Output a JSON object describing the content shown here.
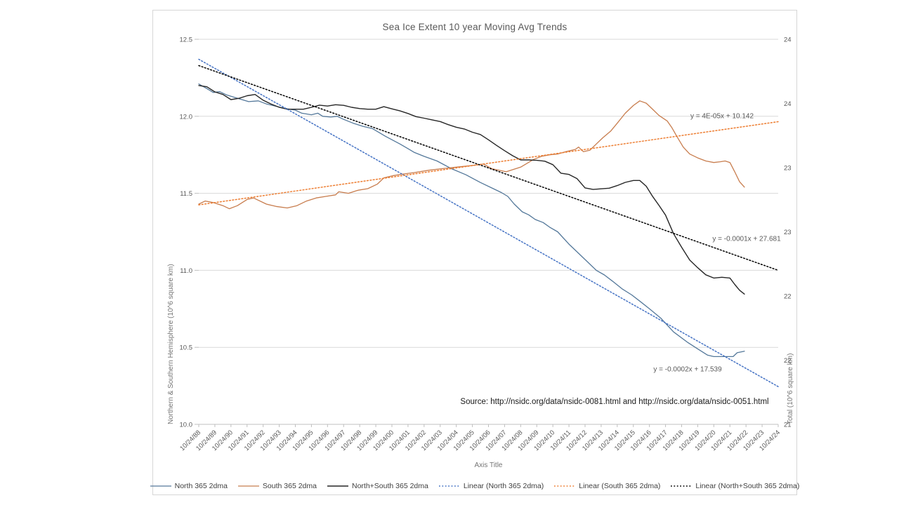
{
  "chart_data": {
    "type": "line",
    "title": "Sea Ice Extent 10 year Moving Avg Trends",
    "xlabel": "Axis Title",
    "ylabel_left": "Northern & Southern Hemisphere (10^6 square km)",
    "ylabel_right": "Total (10^6 square km)",
    "source_note": "Source:  http://nsidc.org/data/nsidc-0081.html and http://nsidc.org/data/nsidc-0051.html",
    "x_range": [
      0,
      36
    ],
    "y_left_range": [
      10.0,
      12.5
    ],
    "y_right_range": [
      21,
      24
    ],
    "grid": true,
    "legend_position": "bottom",
    "x_tick_labels": [
      "10/24/88",
      "10/24/89",
      "10/24/90",
      "10/24/91",
      "10/24/92",
      "10/24/93",
      "10/24/94",
      "10/24/95",
      "10/24/96",
      "10/24/97",
      "10/24/98",
      "10/24/99",
      "10/24/00",
      "10/24/01",
      "10/24/02",
      "10/24/03",
      "10/24/04",
      "10/24/05",
      "10/24/06",
      "10/24/07",
      "10/24/08",
      "10/24/09",
      "10/24/10",
      "10/24/11",
      "10/24/12",
      "10/24/13",
      "10/24/14",
      "10/24/15",
      "10/24/16",
      "10/24/17",
      "10/24/18",
      "10/24/19",
      "10/24/20",
      "10/24/21",
      "10/24/22",
      "10/24/23",
      "10/24/24"
    ],
    "y_left_ticks": [
      {
        "value": 12.5,
        "label": "12.5"
      },
      {
        "value": 12.0,
        "label": "12.0"
      },
      {
        "value": 11.5,
        "label": "11.5"
      },
      {
        "value": 11.0,
        "label": "11.0"
      },
      {
        "value": 10.5,
        "label": "10.5"
      },
      {
        "value": 10.0,
        "label": "10.0"
      }
    ],
    "y_right_ticks": [
      {
        "value": 24.0,
        "label": "24"
      },
      {
        "value": 23.5,
        "label": "24"
      },
      {
        "value": 23.0,
        "label": "23"
      },
      {
        "value": 22.5,
        "label": "23"
      },
      {
        "value": 22.0,
        "label": "22"
      },
      {
        "value": 21.5,
        "label": "22"
      },
      {
        "value": 21.0,
        "label": "21"
      }
    ],
    "series": [
      {
        "name": "North 365 2dma",
        "axis": "left",
        "style": "solid",
        "color": "#54789a",
        "width": 1.3,
        "points": [
          [
            0,
            12.21
          ],
          [
            0.5,
            12.18
          ],
          [
            0.9,
            12.155
          ],
          [
            1.3,
            12.16
          ],
          [
            1.7,
            12.14
          ],
          [
            2.3,
            12.12
          ],
          [
            3.1,
            12.095
          ],
          [
            3.7,
            12.1
          ],
          [
            4.2,
            12.08
          ],
          [
            4.8,
            12.065
          ],
          [
            5.4,
            12.05
          ],
          [
            6,
            12.04
          ],
          [
            6.4,
            12.02
          ],
          [
            7,
            12.01
          ],
          [
            7.4,
            12.02
          ],
          [
            7.7,
            12.0
          ],
          [
            8.2,
            11.995
          ],
          [
            8.6,
            12.0
          ],
          [
            9,
            11.98
          ],
          [
            9.6,
            11.955
          ],
          [
            10.2,
            11.935
          ],
          [
            10.8,
            11.92
          ],
          [
            11.6,
            11.87
          ],
          [
            12.5,
            11.82
          ],
          [
            13,
            11.79
          ],
          [
            13.4,
            11.765
          ],
          [
            14,
            11.74
          ],
          [
            14.8,
            11.71
          ],
          [
            15.7,
            11.66
          ],
          [
            16.6,
            11.62
          ],
          [
            17.5,
            11.57
          ],
          [
            18.3,
            11.53
          ],
          [
            18.8,
            11.505
          ],
          [
            19.2,
            11.48
          ],
          [
            19.6,
            11.43
          ],
          [
            20.1,
            11.38
          ],
          [
            20.5,
            11.36
          ],
          [
            20.9,
            11.33
          ],
          [
            21.4,
            11.31
          ],
          [
            21.8,
            11.28
          ],
          [
            22.3,
            11.25
          ],
          [
            23,
            11.17
          ],
          [
            23.5,
            11.12
          ],
          [
            24,
            11.07
          ],
          [
            24.7,
            11.0
          ],
          [
            25.2,
            10.97
          ],
          [
            25.7,
            10.93
          ],
          [
            26.3,
            10.88
          ],
          [
            26.9,
            10.84
          ],
          [
            27.4,
            10.8
          ],
          [
            28,
            10.75
          ],
          [
            28.7,
            10.69
          ],
          [
            29.5,
            10.6
          ],
          [
            30.4,
            10.53
          ],
          [
            31,
            10.49
          ],
          [
            31.6,
            10.45
          ],
          [
            32,
            10.44
          ],
          [
            32.6,
            10.44
          ],
          [
            33.2,
            10.44
          ],
          [
            33.45,
            10.465
          ],
          [
            33.9,
            10.475
          ]
        ]
      },
      {
        "name": "South 365 2dma",
        "axis": "left",
        "style": "solid",
        "color": "#c87d4e",
        "width": 1.3,
        "points": [
          [
            0,
            11.43
          ],
          [
            0.4,
            11.45
          ],
          [
            0.9,
            11.44
          ],
          [
            1.5,
            11.42
          ],
          [
            1.9,
            11.4
          ],
          [
            2.4,
            11.42
          ],
          [
            3,
            11.46
          ],
          [
            3.4,
            11.47
          ],
          [
            4.2,
            11.43
          ],
          [
            4.8,
            11.415
          ],
          [
            5.5,
            11.405
          ],
          [
            6.1,
            11.42
          ],
          [
            6.7,
            11.45
          ],
          [
            7.3,
            11.47
          ],
          [
            7.9,
            11.48
          ],
          [
            8.5,
            11.49
          ],
          [
            8.7,
            11.51
          ],
          [
            9.3,
            11.5
          ],
          [
            9.9,
            11.52
          ],
          [
            10.5,
            11.53
          ],
          [
            11.1,
            11.56
          ],
          [
            11.5,
            11.6
          ],
          [
            12.1,
            11.615
          ],
          [
            12.7,
            11.625
          ],
          [
            13.4,
            11.635
          ],
          [
            14.3,
            11.65
          ],
          [
            15.1,
            11.66
          ],
          [
            16,
            11.67
          ],
          [
            16.9,
            11.68
          ],
          [
            17.7,
            11.69
          ],
          [
            18.2,
            11.66
          ],
          [
            19.1,
            11.64
          ],
          [
            20,
            11.67
          ],
          [
            20.8,
            11.72
          ],
          [
            21.3,
            11.74
          ],
          [
            21.8,
            11.75
          ],
          [
            22.3,
            11.755
          ],
          [
            22.8,
            11.77
          ],
          [
            23.4,
            11.785
          ],
          [
            23.6,
            11.8
          ],
          [
            23.9,
            11.77
          ],
          [
            24.3,
            11.78
          ],
          [
            24.7,
            11.82
          ],
          [
            25.1,
            11.86
          ],
          [
            25.6,
            11.905
          ],
          [
            26,
            11.955
          ],
          [
            26.5,
            12.02
          ],
          [
            27,
            12.07
          ],
          [
            27.4,
            12.1
          ],
          [
            27.8,
            12.085
          ],
          [
            28.2,
            12.045
          ],
          [
            28.6,
            12.005
          ],
          [
            29.1,
            11.97
          ],
          [
            29.4,
            11.925
          ],
          [
            29.7,
            11.87
          ],
          [
            30.1,
            11.8
          ],
          [
            30.5,
            11.755
          ],
          [
            31,
            11.73
          ],
          [
            31.5,
            11.71
          ],
          [
            32,
            11.7
          ],
          [
            32.4,
            11.705
          ],
          [
            32.7,
            11.71
          ],
          [
            33,
            11.7
          ],
          [
            33.3,
            11.64
          ],
          [
            33.6,
            11.575
          ],
          [
            33.9,
            11.54
          ]
        ]
      },
      {
        "name": "North+South 365 2dma",
        "axis": "right",
        "style": "solid",
        "color": "#262626",
        "width": 1.4,
        "points": [
          [
            0,
            23.64
          ],
          [
            0.5,
            23.63
          ],
          [
            1,
            23.59
          ],
          [
            1.5,
            23.57
          ],
          [
            2,
            23.53
          ],
          [
            2.5,
            23.54
          ],
          [
            3,
            23.56
          ],
          [
            3.5,
            23.57
          ],
          [
            4,
            23.525
          ],
          [
            4.5,
            23.495
          ],
          [
            5,
            23.47
          ],
          [
            5.5,
            23.455
          ],
          [
            6,
            23.455
          ],
          [
            6.5,
            23.455
          ],
          [
            7,
            23.47
          ],
          [
            7.5,
            23.487
          ],
          [
            8,
            23.48
          ],
          [
            8.5,
            23.49
          ],
          [
            9,
            23.485
          ],
          [
            9.5,
            23.47
          ],
          [
            10,
            23.46
          ],
          [
            10.5,
            23.455
          ],
          [
            11,
            23.455
          ],
          [
            11.5,
            23.475
          ],
          [
            12,
            23.458
          ],
          [
            12.5,
            23.442
          ],
          [
            13,
            23.422
          ],
          [
            13.5,
            23.397
          ],
          [
            14,
            23.385
          ],
          [
            14.5,
            23.372
          ],
          [
            15,
            23.359
          ],
          [
            15.5,
            23.335
          ],
          [
            16,
            23.315
          ],
          [
            16.5,
            23.301
          ],
          [
            17,
            23.276
          ],
          [
            17.5,
            23.258
          ],
          [
            18,
            23.217
          ],
          [
            18.5,
            23.173
          ],
          [
            19,
            23.132
          ],
          [
            19.5,
            23.093
          ],
          [
            20,
            23.06
          ],
          [
            20.5,
            23.06
          ],
          [
            21,
            23.057
          ],
          [
            21.5,
            23.05
          ],
          [
            22,
            23.023
          ],
          [
            22.5,
            22.957
          ],
          [
            23,
            22.947
          ],
          [
            23.5,
            22.915
          ],
          [
            24,
            22.842
          ],
          [
            24.5,
            22.83
          ],
          [
            25,
            22.835
          ],
          [
            25.5,
            22.84
          ],
          [
            26,
            22.86
          ],
          [
            26.5,
            22.885
          ],
          [
            27,
            22.9
          ],
          [
            27.4,
            22.9
          ],
          [
            27.8,
            22.855
          ],
          [
            28.2,
            22.775
          ],
          [
            28.6,
            22.705
          ],
          [
            29,
            22.63
          ],
          [
            29.5,
            22.485
          ],
          [
            30,
            22.38
          ],
          [
            30.5,
            22.28
          ],
          [
            31,
            22.22
          ],
          [
            31.5,
            22.165
          ],
          [
            32,
            22.14
          ],
          [
            32.5,
            22.146
          ],
          [
            33,
            22.14
          ],
          [
            33.3,
            22.09
          ],
          [
            33.6,
            22.045
          ],
          [
            33.9,
            22.015
          ]
        ]
      },
      {
        "name": "Linear (North 365 2dma)",
        "axis": "left",
        "style": "dotted",
        "color": "#4472c4",
        "width": 1.5,
        "points": [
          [
            0,
            12.37
          ],
          [
            36,
            10.245
          ]
        ],
        "equation": {
          "text": "y = -0.0002x + 17.539",
          "x": 761,
          "y": 512
        }
      },
      {
        "name": "Linear (South 365 2dma)",
        "axis": "left",
        "style": "dotted",
        "color": "#ed7d31",
        "width": 1.5,
        "points": [
          [
            0,
            11.425
          ],
          [
            36,
            11.965
          ]
        ],
        "equation": {
          "text": "y = 4E-05x + 10.142",
          "x": 810,
          "y": 151
        }
      },
      {
        "name": "Linear (North+South 365 2dma)",
        "axis": "right",
        "style": "dotted",
        "color": "#000000",
        "width": 1.5,
        "points": [
          [
            0,
            23.795
          ],
          [
            36,
            22.2
          ]
        ],
        "equation": {
          "text": "y = -0.0001x + 27.681",
          "x": 845,
          "y": 326
        }
      }
    ],
    "style": {
      "gridline_color": "#d9d9d9",
      "axis_line_color": "#bfbfbf",
      "tick_label_color": "#595959",
      "title_color": "#595959",
      "equation_color": "#595959",
      "legend_text_color": "#404040"
    }
  }
}
